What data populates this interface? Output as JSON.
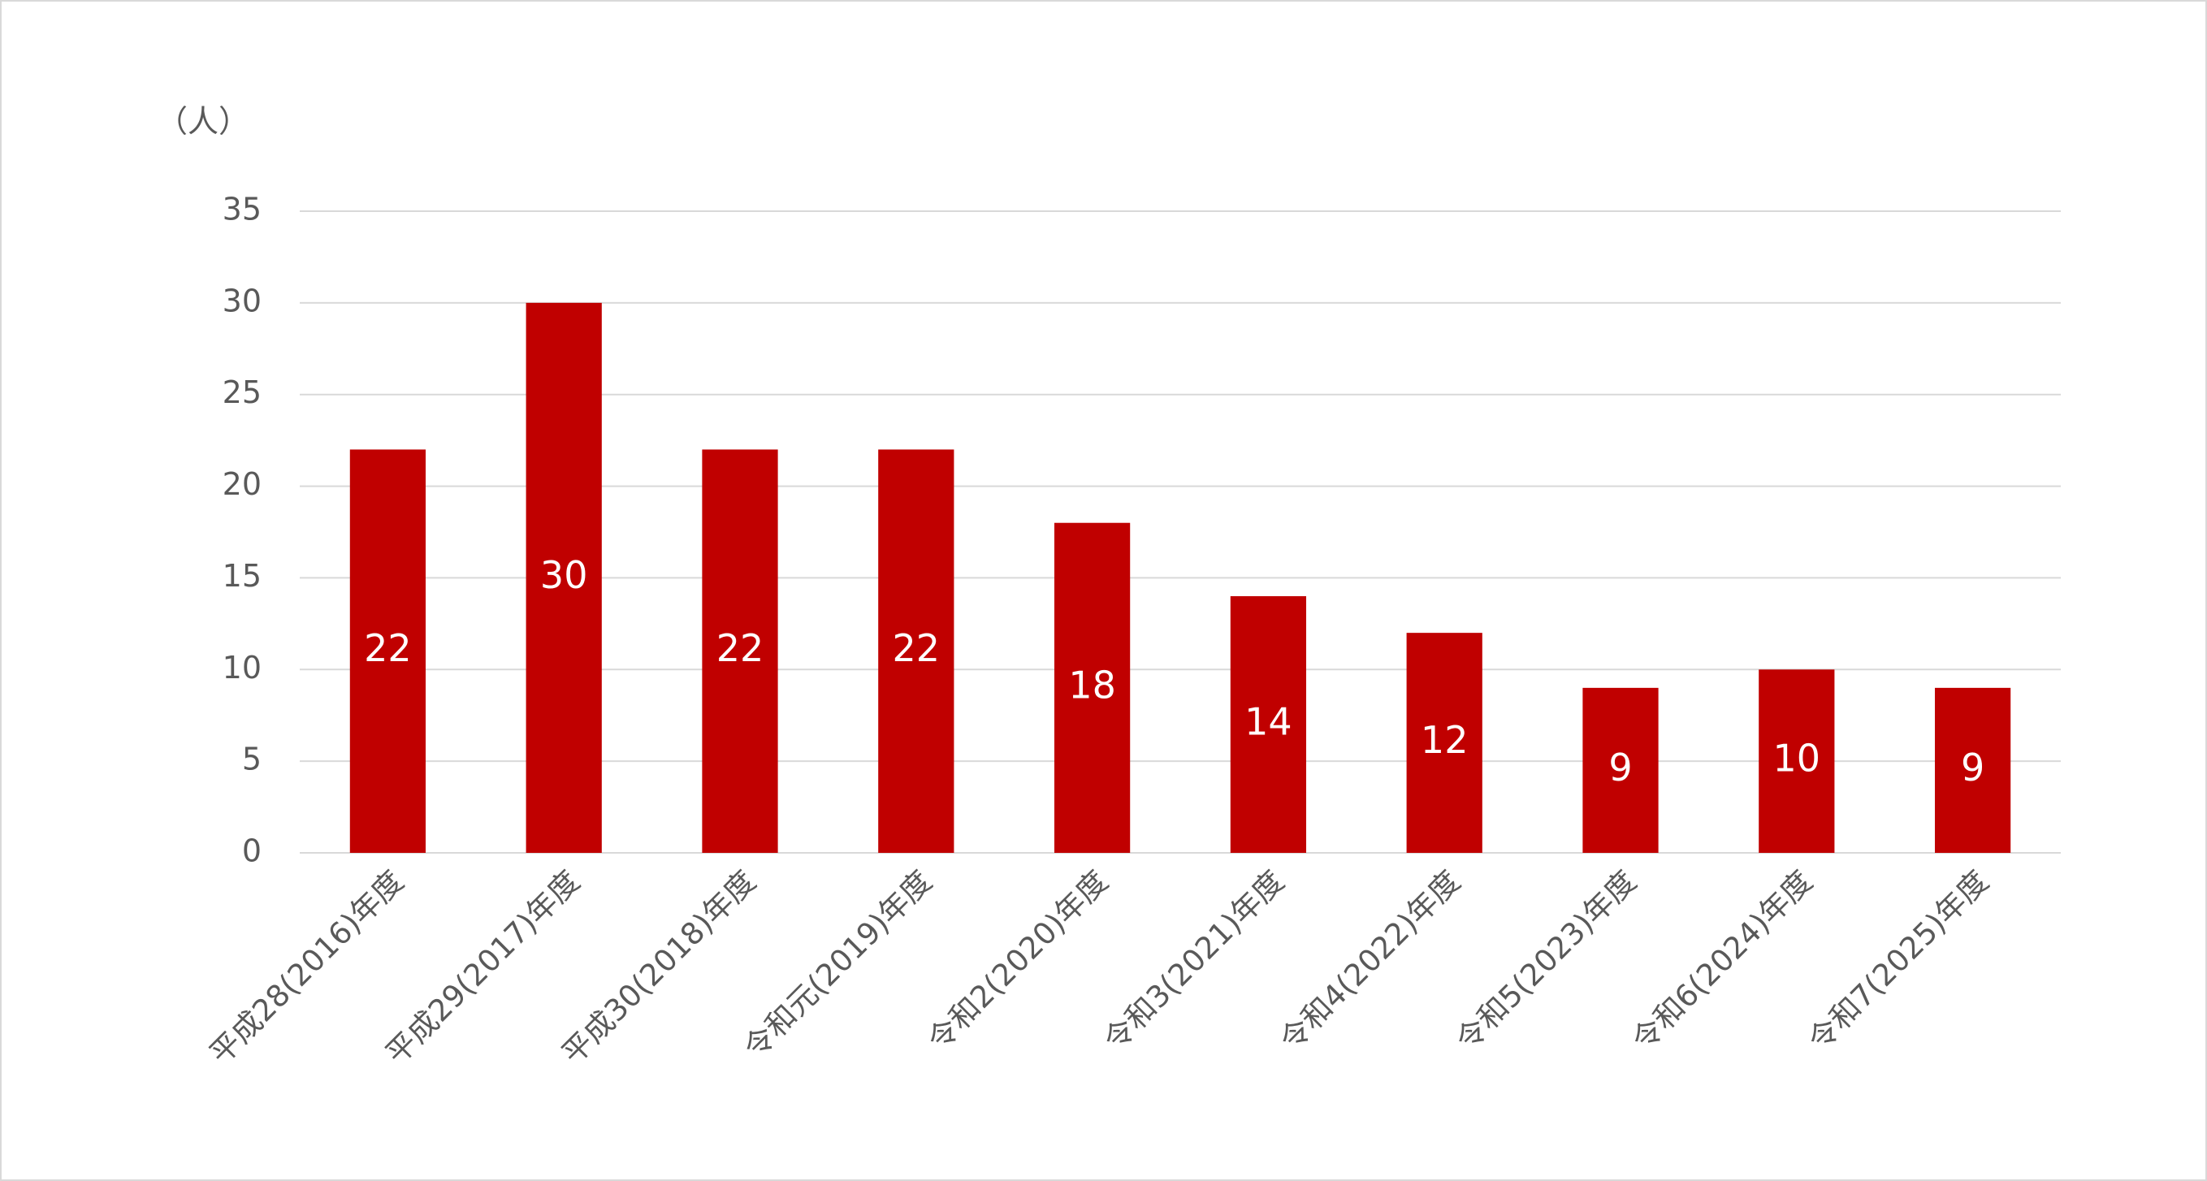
{
  "chart_data": {
    "type": "bar",
    "y_label": "（人）",
    "categories": [
      "平成28(2016)年度",
      "平成29(2017)年度",
      "平成30(2018)年度",
      "令和元(2019)年度",
      "令和2(2020)年度",
      "令和3(2021)年度",
      "令和4(2022)年度",
      "令和5(2023)年度",
      "令和6(2024)年度",
      "令和7(2025)年度"
    ],
    "values": [
      22,
      30,
      22,
      22,
      18,
      14,
      12,
      9,
      10,
      9
    ],
    "color": "#c00000",
    "ylim": [
      0,
      35
    ],
    "yticks": [
      0,
      5,
      10,
      15,
      20,
      25,
      30,
      35
    ],
    "grid": true
  }
}
